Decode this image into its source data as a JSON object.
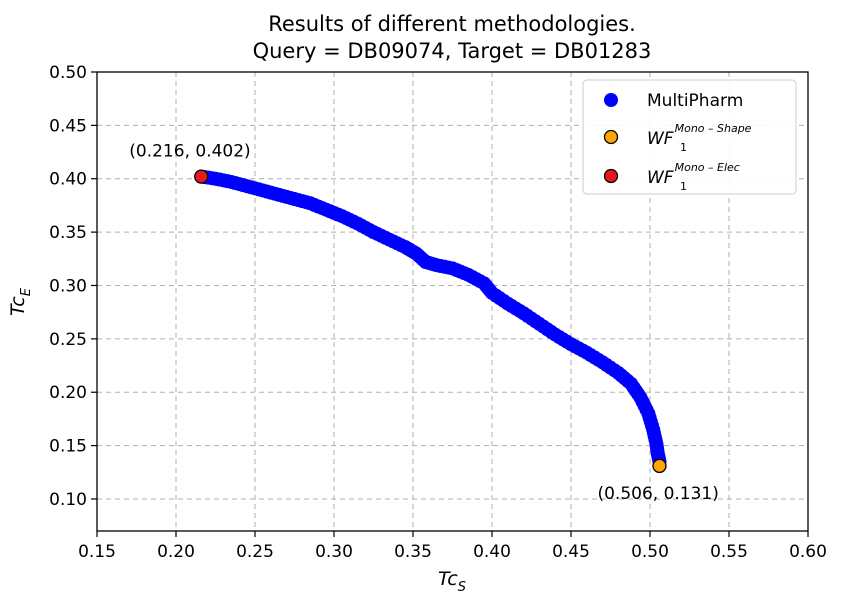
{
  "chart_data": {
    "type": "scatter",
    "title": [
      "Results of different methodologies.",
      "Query = DB09074, Target = DB01283"
    ],
    "xlabel": {
      "main": "Tc",
      "sub": "S"
    },
    "ylabel": {
      "main": "Tc",
      "sub": "E"
    },
    "xlim": [
      0.15,
      0.6
    ],
    "ylim": [
      0.07,
      0.5
    ],
    "xticks": [
      0.15,
      0.2,
      0.25,
      0.3,
      0.35,
      0.4,
      0.45,
      0.5,
      0.55,
      0.6
    ],
    "yticks": [
      0.1,
      0.15,
      0.2,
      0.25,
      0.3,
      0.35,
      0.4,
      0.45,
      0.5
    ],
    "xtick_labels": [
      "0.15",
      "0.20",
      "0.25",
      "0.30",
      "0.35",
      "0.40",
      "0.45",
      "0.50",
      "0.55",
      "0.60"
    ],
    "ytick_labels": [
      "0.10",
      "0.15",
      "0.20",
      "0.25",
      "0.30",
      "0.35",
      "0.40",
      "0.45",
      "0.50"
    ],
    "grid": true,
    "legend_position": "top-right",
    "series": [
      {
        "name": "MultiPharm",
        "color": "#0000ff",
        "marker": "circle",
        "points": [
          [
            0.216,
            0.402
          ],
          [
            0.225,
            0.4
          ],
          [
            0.235,
            0.397
          ],
          [
            0.245,
            0.393
          ],
          [
            0.255,
            0.389
          ],
          [
            0.265,
            0.385
          ],
          [
            0.275,
            0.381
          ],
          [
            0.285,
            0.377
          ],
          [
            0.295,
            0.371
          ],
          [
            0.305,
            0.365
          ],
          [
            0.315,
            0.358
          ],
          [
            0.325,
            0.35
          ],
          [
            0.335,
            0.343
          ],
          [
            0.345,
            0.336
          ],
          [
            0.352,
            0.33
          ],
          [
            0.358,
            0.322
          ],
          [
            0.365,
            0.319
          ],
          [
            0.375,
            0.316
          ],
          [
            0.385,
            0.31
          ],
          [
            0.395,
            0.302
          ],
          [
            0.4,
            0.293
          ],
          [
            0.41,
            0.283
          ],
          [
            0.42,
            0.274
          ],
          [
            0.43,
            0.264
          ],
          [
            0.44,
            0.254
          ],
          [
            0.45,
            0.245
          ],
          [
            0.46,
            0.237
          ],
          [
            0.47,
            0.228
          ],
          [
            0.48,
            0.218
          ],
          [
            0.488,
            0.208
          ],
          [
            0.494,
            0.195
          ],
          [
            0.499,
            0.18
          ],
          [
            0.502,
            0.165
          ],
          [
            0.504,
            0.152
          ],
          [
            0.505,
            0.142
          ],
          [
            0.506,
            0.135
          ]
        ]
      },
      {
        "name": "WF",
        "name_sub": "1",
        "name_sup": "Mono – Shape",
        "color": "#ffa500",
        "marker": "circle",
        "points": [
          [
            0.506,
            0.131
          ]
        ]
      },
      {
        "name": "WF",
        "name_sub": "1",
        "name_sup": "Mono – Elec",
        "color": "#e41a1c",
        "marker": "circle",
        "points": [
          [
            0.216,
            0.402
          ]
        ]
      }
    ],
    "annotations": [
      {
        "text": "(0.216, 0.402)",
        "x": 0.216,
        "y": 0.402
      },
      {
        "text": "(0.506, 0.131)",
        "x": 0.506,
        "y": 0.131
      }
    ]
  }
}
